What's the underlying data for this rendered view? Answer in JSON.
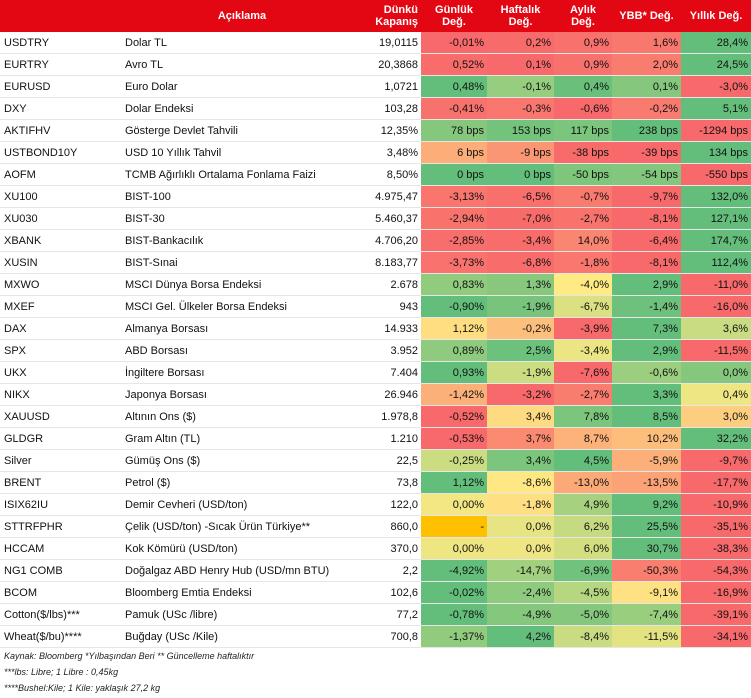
{
  "header": {
    "code": "",
    "description": "Açıklama",
    "close_line1": "Dünkü",
    "close_line2": "Kapanış",
    "daily": "Günlük Değ.",
    "weekly_line1": "Haftalık",
    "weekly_line2": "Değ.",
    "monthly_line1": "Aylık",
    "monthly_line2": "Değ.",
    "ytd": "YBB* Değ.",
    "yearly": "Yıllık Değ."
  },
  "colors": {
    "header_bg": "#e30613",
    "strong_green": "#63be7b",
    "yellow": "#ffeb84",
    "strong_red": "#f8696b",
    "orange_na": "#ffc000"
  },
  "rows": [
    {
      "code": "USDTRY",
      "desc": "Dolar TL",
      "close": "19,0115",
      "daily": "-0,01%",
      "weekly": "0,2%",
      "monthly": "0,9%",
      "ytd": "1,6%",
      "yearly": "28,4%"
    },
    {
      "code": "EURTRY",
      "desc": "Avro TL",
      "close": "20,3868",
      "daily": "0,52%",
      "weekly": "0,1%",
      "monthly": "0,9%",
      "ytd": "2,0%",
      "yearly": "24,5%"
    },
    {
      "code": "EURUSD",
      "desc": "Euro Dolar",
      "close": "1,0721",
      "daily": "0,48%",
      "weekly": "-0,1%",
      "monthly": "0,4%",
      "ytd": "0,1%",
      "yearly": "-3,0%"
    },
    {
      "code": "DXY",
      "desc": "Dolar Endeksi",
      "close": "103,28",
      "daily": "-0,41%",
      "weekly": "-0,3%",
      "monthly": "-0,6%",
      "ytd": "-0,2%",
      "yearly": "5,1%"
    },
    {
      "code": "AKTIFHV",
      "desc": "Gösterge Devlet Tahvili",
      "close": "12,35%",
      "daily": "78 bps",
      "weekly": "153 bps",
      "monthly": "117 bps",
      "ytd": "238 bps",
      "yearly": "-1294 bps"
    },
    {
      "code": "USTBOND10Y",
      "desc": "USD 10 Yıllık Tahvil",
      "close": "3,48%",
      "daily": "6 bps",
      "weekly": "-9 bps",
      "monthly": "-38 bps",
      "ytd": "-39 bps",
      "yearly": "134 bps"
    },
    {
      "code": "AOFM",
      "desc": "TCMB Ağırlıklı Ortalama Fonlama Faizi",
      "close": "8,50%",
      "daily": "0 bps",
      "weekly": "0 bps",
      "monthly": "-50 bps",
      "ytd": "-54 bps",
      "yearly": "-550 bps"
    },
    {
      "code": "XU100",
      "desc": "BIST-100",
      "close": "4.975,47",
      "daily": "-3,13%",
      "weekly": "-6,5%",
      "monthly": "-0,7%",
      "ytd": "-9,7%",
      "yearly": "132,0%"
    },
    {
      "code": "XU030",
      "desc": "BIST-30",
      "close": "5.460,37",
      "daily": "-2,94%",
      "weekly": "-7,0%",
      "monthly": "-2,7%",
      "ytd": "-8,1%",
      "yearly": "127,1%"
    },
    {
      "code": "XBANK",
      "desc": "BIST-Bankacılık",
      "close": "4.706,20",
      "daily": "-2,85%",
      "weekly": "-3,4%",
      "monthly": "14,0%",
      "ytd": "-6,4%",
      "yearly": "174,7%"
    },
    {
      "code": "XUSIN",
      "desc": "BIST-Sınai",
      "close": "8.183,77",
      "daily": "-3,73%",
      "weekly": "-6,8%",
      "monthly": "-1,8%",
      "ytd": "-8,1%",
      "yearly": "112,4%"
    },
    {
      "code": "MXWO",
      "desc": "MSCI Dünya Borsa Endeksi",
      "close": "2.678",
      "daily": "0,83%",
      "weekly": "1,3%",
      "monthly": "-4,0%",
      "ytd": "2,9%",
      "yearly": "-11,0%"
    },
    {
      "code": "MXEF",
      "desc": "MSCI Gel. Ülkeler Borsa Endeksi",
      "close": "943",
      "daily": "-0,90%",
      "weekly": "-1,9%",
      "monthly": "-6,7%",
      "ytd": "-1,4%",
      "yearly": "-16,0%"
    },
    {
      "code": "DAX",
      "desc": "Almanya Borsası",
      "close": "14.933",
      "daily": "1,12%",
      "weekly": "-0,2%",
      "monthly": "-3,9%",
      "ytd": "7,3%",
      "yearly": "3,6%"
    },
    {
      "code": "SPX",
      "desc": "ABD Borsası",
      "close": "3.952",
      "daily": "0,89%",
      "weekly": "2,5%",
      "monthly": "-3,4%",
      "ytd": "2,9%",
      "yearly": "-11,5%"
    },
    {
      "code": "UKX",
      "desc": "İngiltere Borsası",
      "close": "7.404",
      "daily": "0,93%",
      "weekly": "-1,9%",
      "monthly": "-7,6%",
      "ytd": "-0,6%",
      "yearly": "0,0%"
    },
    {
      "code": "NIKX",
      "desc": "Japonya Borsası",
      "close": "26.946",
      "daily": "-1,42%",
      "weekly": "-3,2%",
      "monthly": "-2,7%",
      "ytd": "3,3%",
      "yearly": "0,4%"
    },
    {
      "code": "XAUUSD",
      "desc": "Altının Ons ($)",
      "close": "1.978,8",
      "daily": "-0,52%",
      "weekly": "3,4%",
      "monthly": "7,8%",
      "ytd": "8,5%",
      "yearly": "3,0%"
    },
    {
      "code": "GLDGR",
      "desc": "Gram Altın (TL)",
      "close": "1.210",
      "daily": "-0,53%",
      "weekly": "3,7%",
      "monthly": "8,7%",
      "ytd": "10,2%",
      "yearly": "32,2%"
    },
    {
      "code": "Silver",
      "desc": "Gümüş Ons ($)",
      "close": "22,5",
      "daily": "-0,25%",
      "weekly": "3,4%",
      "monthly": "4,5%",
      "ytd": "-5,9%",
      "yearly": "-9,7%"
    },
    {
      "code": "BRENT",
      "desc": "Petrol ($)",
      "close": "73,8",
      "daily": "1,12%",
      "weekly": "-8,6%",
      "monthly": "-13,0%",
      "ytd": "-13,5%",
      "yearly": "-17,7%"
    },
    {
      "code": "ISIX62IU",
      "desc": "Demir Cevheri (USD/ton)",
      "close": "122,0",
      "daily": "0,00%",
      "weekly": "-1,8%",
      "monthly": "4,9%",
      "ytd": "9,2%",
      "yearly": "-10,9%"
    },
    {
      "code": "STTRFPHR",
      "desc": "Çelik (USD/ton) -Sıcak Ürün Türkiye**",
      "close": "860,0",
      "daily": "-",
      "weekly": "0,0%",
      "monthly": "6,2%",
      "ytd": "25,5%",
      "yearly": "-35,1%"
    },
    {
      "code": "HCCAM",
      "desc": "Kok Kömürü (USD/ton)",
      "close": "370,0",
      "daily": "0,00%",
      "weekly": "0,0%",
      "monthly": "6,0%",
      "ytd": "30,7%",
      "yearly": "-38,3%"
    },
    {
      "code": "NG1 COMB",
      "desc": "Doğalgaz ABD Henry Hub (USD/mn BTU)",
      "close": "2,2",
      "daily": "-4,92%",
      "weekly": "-14,7%",
      "monthly": "-6,9%",
      "ytd": "-50,3%",
      "yearly": "-54,3%"
    },
    {
      "code": "BCOM",
      "desc": "Bloomberg Emtia Endeksi",
      "close": "102,6",
      "daily": "-0,02%",
      "weekly": "-2,4%",
      "monthly": "-4,5%",
      "ytd": "-9,1%",
      "yearly": "-16,9%"
    },
    {
      "code": "Cotton($/lbs)***",
      "desc": "Pamuk (USc /libre)",
      "close": "77,2",
      "daily": "-0,78%",
      "weekly": "-4,9%",
      "monthly": "-5,0%",
      "ytd": "-7,4%",
      "yearly": "-39,1%"
    },
    {
      "code": "Wheat($/bu)****",
      "desc": "Buğday (USc /Kile)",
      "close": "700,8",
      "daily": "-1,37%",
      "weekly": "4,2%",
      "monthly": "-8,4%",
      "ytd": "-11,5%",
      "yearly": "-34,1%"
    }
  ],
  "notes": {
    "line1": "Kaynak: Bloomberg *Yılbaşından Beri  ** Güncelleme haftalıktır",
    "line2": "***lbs: Libre; 1 Libre : 0,45kg",
    "line3": "****Bushel:Kile; 1 Kile: yaklaşık 27,2 kg"
  }
}
